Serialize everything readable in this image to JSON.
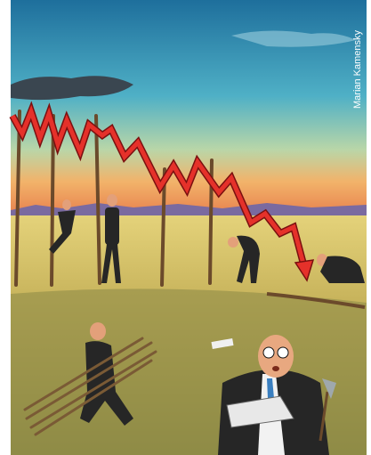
{
  "credit": "Marian Kamensky"
}
